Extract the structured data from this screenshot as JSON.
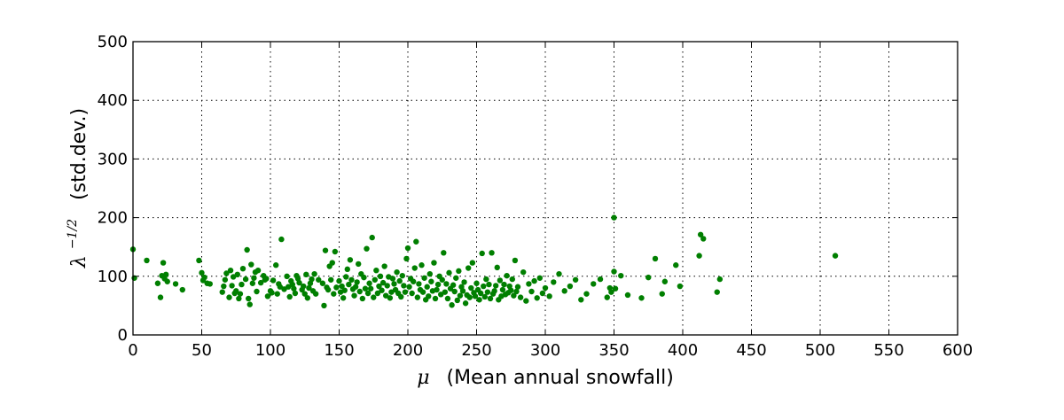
{
  "chart_data": {
    "type": "scatter",
    "title": "",
    "xlabel": {
      "symbol": "μ",
      "text": "(Mean annual snowfall)"
    },
    "ylabel": {
      "symbol": "λ",
      "exponent": "−1/2",
      "text": "(std.dev.)"
    },
    "xlim": [
      0,
      600
    ],
    "ylim": [
      0,
      500
    ],
    "xticks": [
      0,
      50,
      100,
      150,
      200,
      250,
      300,
      350,
      400,
      450,
      500,
      550,
      600
    ],
    "yticks": [
      0,
      100,
      200,
      300,
      400,
      500
    ],
    "grid": true,
    "marker_color": "#007f00",
    "series": [
      {
        "x": [
          0,
          1,
          10,
          18,
          20,
          21,
          22,
          23,
          24,
          25,
          31,
          36,
          48,
          50,
          51,
          52,
          54,
          56,
          65,
          66,
          67,
          68,
          70,
          71,
          72,
          73,
          74,
          75,
          76,
          77,
          78,
          79,
          80,
          82,
          83,
          84,
          85,
          86,
          87,
          88,
          89,
          90,
          91,
          93,
          95,
          96,
          97,
          98,
          100,
          101,
          102,
          104,
          105,
          106,
          107,
          108,
          110,
          112,
          113,
          114,
          115,
          116,
          117,
          118,
          119,
          120,
          121,
          123,
          124,
          125,
          126,
          127,
          128,
          129,
          130,
          131,
          132,
          133,
          135,
          138,
          139,
          140,
          141,
          142,
          143,
          144,
          145,
          146,
          147,
          148,
          150,
          151,
          152,
          153,
          154,
          155,
          156,
          157,
          158,
          159,
          160,
          161,
          162,
          163,
          164,
          165,
          166,
          167,
          168,
          169,
          170,
          171,
          172,
          173,
          174,
          175,
          176,
          177,
          178,
          179,
          180,
          181,
          182,
          183,
          184,
          185,
          186,
          187,
          188,
          189,
          190,
          191,
          192,
          193,
          194,
          195,
          196,
          197,
          198,
          199,
          200,
          201,
          202,
          203,
          204,
          205,
          206,
          207,
          208,
          209,
          210,
          211,
          212,
          213,
          214,
          215,
          216,
          217,
          218,
          219,
          220,
          221,
          222,
          223,
          224,
          225,
          226,
          227,
          228,
          229,
          230,
          231,
          232,
          233,
          234,
          235,
          236,
          237,
          238,
          239,
          240,
          241,
          242,
          243,
          244,
          245,
          246,
          247,
          248,
          249,
          250,
          251,
          252,
          253,
          254,
          255,
          256,
          257,
          258,
          259,
          260,
          261,
          262,
          263,
          264,
          265,
          266,
          267,
          268,
          269,
          270,
          271,
          272,
          273,
          274,
          275,
          276,
          277,
          278,
          279,
          280,
          282,
          284,
          286,
          288,
          290,
          292,
          294,
          296,
          298,
          300,
          303,
          306,
          310,
          314,
          318,
          322,
          326,
          330,
          335,
          340,
          345,
          347,
          348,
          350,
          351,
          355,
          360,
          370,
          375,
          380,
          385,
          387,
          395,
          398,
          412,
          415,
          425,
          427,
          511
        ],
        "y": [
          146,
          97,
          127,
          88,
          64,
          101,
          123,
          96,
          103,
          91,
          87,
          77,
          127,
          106,
          93,
          98,
          88,
          87,
          73,
          83,
          94,
          105,
          64,
          110,
          84,
          99,
          71,
          75,
          103,
          62,
          70,
          86,
          113,
          95,
          145,
          62,
          52,
          120,
          88,
          97,
          107,
          74,
          110,
          89,
          101,
          94,
          96,
          66,
          75,
          72,
          93,
          119,
          70,
          87,
          82,
          163,
          78,
          100,
          82,
          65,
          92,
          86,
          79,
          71,
          101,
          96,
          89,
          77,
          83,
          70,
          103,
          63,
          80,
          88,
          95,
          75,
          104,
          70,
          94,
          88,
          50,
          144,
          81,
          77,
          117,
          94,
          123,
          70,
          142,
          81,
          92,
          73,
          83,
          63,
          76,
          99,
          112,
          86,
          128,
          94,
          78,
          67,
          82,
          90,
          121,
          74,
          104,
          62,
          98,
          79,
          147,
          71,
          88,
          79,
          166,
          64,
          94,
          110,
          71,
          83,
          100,
          76,
          89,
          117,
          67,
          84,
          99,
          63,
          73,
          96,
          87,
          77,
          107,
          71,
          92,
          65,
          101,
          84,
          73,
          130,
          148,
          82,
          96,
          71,
          91,
          114,
          159,
          64,
          87,
          77,
          119,
          73,
          97,
          60,
          82,
          66,
          104,
          91,
          75,
          123,
          62,
          77,
          86,
          100,
          69,
          94,
          140,
          73,
          87,
          62,
          106,
          79,
          51,
          85,
          74,
          97,
          59,
          109,
          67,
          82,
          75,
          90,
          54,
          68,
          114,
          64,
          80,
          123,
          72,
          66,
          88,
          77,
          60,
          71,
          139,
          83,
          65,
          95,
          73,
          86,
          62,
          140,
          70,
          75,
          84,
          115,
          60,
          93,
          66,
          77,
          86,
          69,
          101,
          72,
          83,
          76,
          95,
          67,
          127,
          74,
          82,
          64,
          107,
          58,
          87,
          74,
          92,
          63,
          97,
          71,
          80,
          66,
          90,
          104,
          75,
          83,
          94,
          60,
          70,
          87,
          95,
          64,
          80,
          73,
          108,
          79,
          101,
          68,
          63,
          98,
          130,
          70,
          91,
          119,
          83,
          135,
          164,
          73,
          95,
          135
        ],
        "extra_points": {
          "x": [
            350,
            413
          ],
          "y": [
            200,
            171
          ]
        }
      }
    ]
  }
}
